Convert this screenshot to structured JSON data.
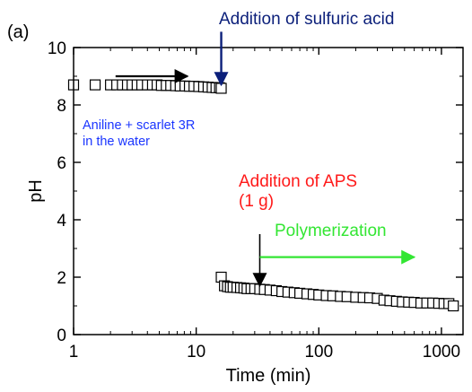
{
  "chart_data": {
    "type": "scatter",
    "panel_label": "(a)",
    "xlabel": "Time (min)",
    "ylabel": "pH",
    "xscale": "log",
    "xlim": [
      1,
      1500
    ],
    "ylim": [
      0,
      10
    ],
    "xticks": [
      1,
      10,
      100,
      1000
    ],
    "xtick_labels": [
      "1",
      "10",
      "100",
      "1000"
    ],
    "yticks": [
      0,
      2,
      4,
      6,
      8,
      10
    ],
    "ytick_labels": [
      "0",
      "2",
      "4",
      "6",
      "8",
      "10"
    ],
    "grid": false,
    "marker": "open-square",
    "series": [
      {
        "x": [
          1.0,
          1.5,
          2.0,
          2.25,
          2.5,
          2.75,
          3.0,
          3.3,
          3.6,
          4.0,
          4.4,
          4.8,
          5.2,
          5.7,
          6.2,
          6.8,
          7.4,
          8.1,
          8.8,
          9.6,
          10.5,
          11.5,
          12.5,
          13.5,
          14.5,
          15.5,
          16.0
        ],
        "y": [
          8.7,
          8.7,
          8.7,
          8.7,
          8.7,
          8.7,
          8.7,
          8.7,
          8.7,
          8.7,
          8.7,
          8.7,
          8.68,
          8.68,
          8.68,
          8.67,
          8.66,
          8.66,
          8.65,
          8.65,
          8.64,
          8.63,
          8.62,
          8.61,
          8.6,
          8.6,
          8.58
        ]
      },
      {
        "x": [
          16.0,
          17.0,
          18.0,
          19.0,
          20.0,
          21.5,
          23.0,
          24.5,
          26.0,
          28.0,
          30.0,
          33.0,
          36.0,
          40.0,
          45.0,
          50.0,
          56.0,
          63.0,
          70.0,
          80.0,
          90.0,
          100.0,
          115.0,
          130.0,
          150.0,
          170.0,
          200.0,
          230.0,
          260.0,
          300.0,
          340.0,
          380.0,
          430.0,
          480.0,
          540.0,
          600.0,
          680.0,
          760.0,
          850.0,
          950.0,
          1050.0,
          1150.0,
          1250.0
        ],
        "y": [
          2.0,
          1.7,
          1.67,
          1.65,
          1.65,
          1.64,
          1.63,
          1.62,
          1.6,
          1.6,
          1.6,
          1.58,
          1.57,
          1.55,
          1.53,
          1.5,
          1.48,
          1.46,
          1.44,
          1.42,
          1.4,
          1.38,
          1.36,
          1.35,
          1.33,
          1.32,
          1.3,
          1.29,
          1.28,
          1.26,
          1.2,
          1.18,
          1.16,
          1.14,
          1.13,
          1.12,
          1.1,
          1.1,
          1.1,
          1.09,
          1.08,
          1.08,
          1.0
        ]
      }
    ],
    "annotations": [
      {
        "text": "Addition of sulfuric acid",
        "color": "#0b1f7a"
      },
      {
        "text": "Aniline + scarlet 3R",
        "color": "#1a35ff"
      },
      {
        "text": "in the water",
        "color": "#1a35ff"
      },
      {
        "text": "Addition of APS",
        "color": "#ff1a1a"
      },
      {
        "text": "(1 g)",
        "color": "#ff1a1a"
      },
      {
        "text": "Polymerization",
        "color": "#33e633"
      }
    ],
    "arrows": [
      {
        "from": [
          2.2,
          9.0
        ],
        "to": [
          8.5,
          9.0
        ],
        "color": "#000000"
      },
      {
        "from": [
          16.0,
          10.55
        ],
        "to": [
          16.0,
          8.7
        ],
        "color": "#0b1f7a"
      },
      {
        "from": [
          33.0,
          3.5
        ],
        "to": [
          33.0,
          1.7
        ],
        "color": "#000000"
      },
      {
        "from": [
          33.0,
          2.7
        ],
        "to": [
          600.0,
          2.7
        ],
        "color": "#33e633"
      }
    ]
  }
}
